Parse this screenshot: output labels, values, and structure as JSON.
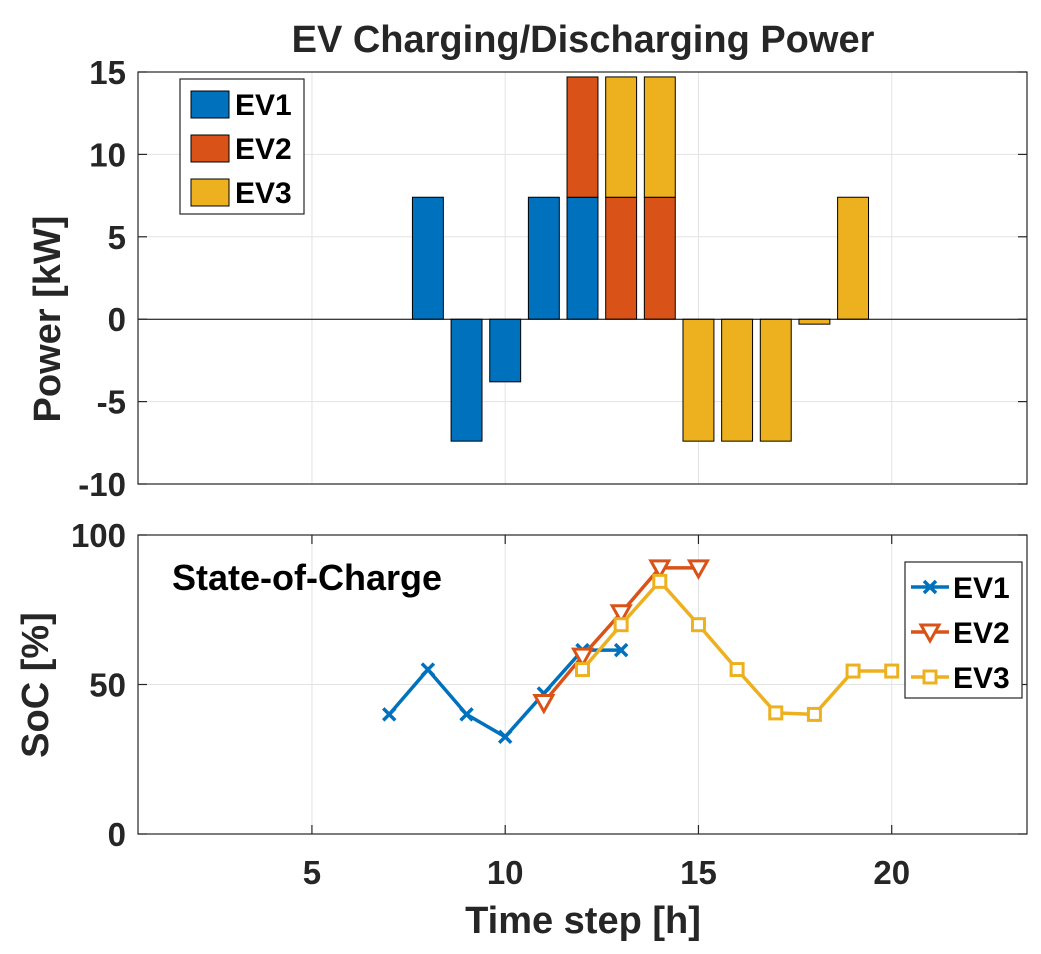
{
  "chart_data": [
    {
      "type": "bar",
      "stacked": true,
      "title": "EV Charging/Discharging Power",
      "xlabel": "",
      "ylabel": "Power [kW]",
      "xlim": [
        0.5,
        23.5
      ],
      "ylim": [
        -10,
        15
      ],
      "yticks": [
        15,
        10,
        5,
        0,
        -5,
        -10
      ],
      "grid": true,
      "legend_position": "top-left",
      "x": [
        8,
        9,
        10,
        11,
        12,
        13,
        14,
        15,
        16,
        17,
        18,
        19
      ],
      "series": [
        {
          "name": "EV1",
          "color": "#0072BD",
          "values": [
            7.4,
            -7.4,
            -3.8,
            7.4,
            7.4,
            0,
            0,
            0,
            0,
            0,
            0,
            0
          ]
        },
        {
          "name": "EV2",
          "color": "#D95319",
          "values": [
            0,
            0,
            0,
            0,
            7.3,
            7.4,
            7.4,
            0,
            0,
            0,
            0,
            0
          ]
        },
        {
          "name": "EV3",
          "color": "#EDB120",
          "values": [
            0,
            0,
            0,
            0,
            0,
            7.3,
            7.3,
            -7.4,
            -7.4,
            -7.4,
            -0.3,
            7.4
          ]
        }
      ]
    },
    {
      "type": "line",
      "title": "",
      "annotation": "State-of-Charge",
      "xlabel": "Time step [h]",
      "ylabel": "SoC [%]",
      "xlim": [
        0.5,
        23.5
      ],
      "ylim": [
        0,
        100
      ],
      "xticks": [
        5,
        10,
        15,
        20
      ],
      "yticks": [
        100,
        50,
        0
      ],
      "grid": true,
      "legend_position": "top-right",
      "series": [
        {
          "name": "EV1",
          "color": "#0072BD",
          "marker": "x",
          "x": [
            7,
            8,
            9,
            10,
            11,
            12,
            13
          ],
          "values": [
            40,
            55,
            40,
            32.5,
            47,
            61.5,
            61.5
          ]
        },
        {
          "name": "EV2",
          "color": "#D95319",
          "marker": "triangle-down",
          "x": [
            11,
            12,
            13,
            14,
            15
          ],
          "values": [
            44,
            59.5,
            74,
            89,
            89
          ]
        },
        {
          "name": "EV3",
          "color": "#EDB120",
          "marker": "square",
          "x": [
            12,
            13,
            14,
            15,
            16,
            17,
            18,
            19,
            20
          ],
          "values": [
            55,
            70,
            84.5,
            70,
            55,
            40.5,
            40,
            54.5,
            54.5
          ]
        }
      ]
    }
  ]
}
